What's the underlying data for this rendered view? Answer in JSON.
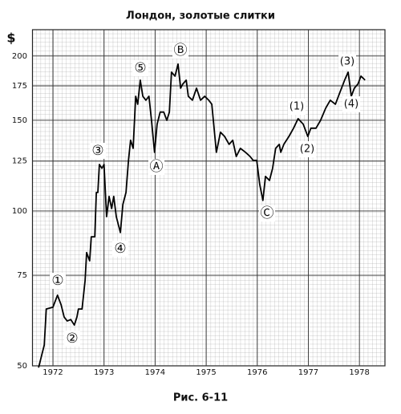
{
  "chart_data": {
    "type": "line",
    "title": "Лондон, золотые слитки",
    "y_label": "$",
    "caption": "Рис. 6-11",
    "log_y": true,
    "grid": true,
    "color": "#000000",
    "xlim": [
      1971.6,
      1978.5
    ],
    "xticks": [
      1972,
      1973,
      1974,
      1975,
      1976,
      1977,
      1978
    ],
    "ylim": [
      50,
      225
    ],
    "yticks": [
      50,
      75,
      100,
      125,
      150,
      175,
      200
    ],
    "x": [
      1971.72,
      1971.83,
      1971.87,
      1972.0,
      1972.09,
      1972.16,
      1972.22,
      1972.28,
      1972.35,
      1972.42,
      1972.47,
      1972.5,
      1972.57,
      1972.63,
      1972.66,
      1972.72,
      1972.75,
      1972.82,
      1972.85,
      1972.88,
      1972.91,
      1972.96,
      1973.0,
      1973.05,
      1973.1,
      1973.15,
      1973.19,
      1973.24,
      1973.32,
      1973.37,
      1973.43,
      1973.48,
      1973.52,
      1973.57,
      1973.62,
      1973.66,
      1973.71,
      1973.76,
      1973.82,
      1973.88,
      1973.93,
      1973.99,
      1974.04,
      1974.1,
      1974.17,
      1974.23,
      1974.28,
      1974.32,
      1974.39,
      1974.45,
      1974.5,
      1974.54,
      1974.61,
      1974.65,
      1974.73,
      1974.81,
      1974.89,
      1974.97,
      1975.05,
      1975.11,
      1975.2,
      1975.28,
      1975.36,
      1975.45,
      1975.52,
      1975.59,
      1975.67,
      1975.77,
      1975.86,
      1975.92,
      1975.99,
      1976.05,
      1976.11,
      1976.16,
      1976.24,
      1976.3,
      1976.36,
      1976.43,
      1976.46,
      1976.52,
      1976.62,
      1976.71,
      1976.8,
      1976.9,
      1976.99,
      1977.05,
      1977.15,
      1977.24,
      1977.34,
      1977.43,
      1977.53,
      1977.62,
      1977.71,
      1977.78,
      1977.84,
      1977.9,
      1977.97,
      1978.03,
      1978.11
    ],
    "values": [
      49.6,
      54.9,
      64.5,
      65.0,
      68.6,
      65.7,
      62.2,
      61.1,
      61.5,
      60.0,
      62.2,
      64.5,
      64.5,
      73.2,
      83.0,
      80.0,
      89.1,
      89.1,
      108.6,
      108.6,
      123.1,
      121.0,
      123.1,
      97.5,
      106.7,
      101.1,
      106.7,
      97.5,
      90.8,
      102.9,
      108.6,
      125.4,
      137.2,
      132.3,
      167.0,
      161.2,
      179.5,
      167.0,
      164.1,
      167.0,
      150.0,
      130.0,
      147.4,
      155.6,
      155.6,
      150.0,
      155.6,
      186.1,
      182.8,
      192.9,
      173.2,
      176.3,
      179.5,
      167.0,
      164.1,
      173.2,
      164.1,
      167.0,
      164.1,
      161.2,
      130.0,
      142.2,
      139.6,
      134.7,
      137.2,
      127.6,
      132.3,
      130.0,
      127.6,
      125.4,
      125.4,
      112.5,
      104.8,
      116.7,
      114.6,
      121.0,
      132.3,
      134.7,
      130.0,
      134.7,
      139.6,
      144.8,
      151.1,
      147.4,
      139.6,
      144.8,
      144.8,
      150.0,
      158.4,
      164.1,
      161.2,
      170.1,
      179.5,
      186.1,
      167.0,
      173.2,
      176.3,
      182.8,
      179.5
    ],
    "annotations": [
      "①",
      "②",
      "③",
      "④",
      "⑤",
      "Ⓐ",
      "Ⓑ",
      "Ⓒ",
      "(1)",
      "(2)",
      "(3)",
      "(4)"
    ]
  }
}
